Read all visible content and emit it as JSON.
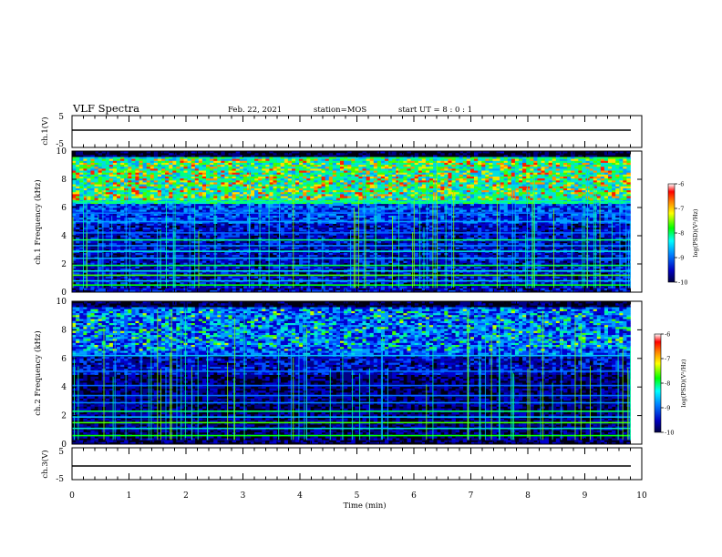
{
  "header": {
    "title": "VLF Spectra",
    "date": "Feb. 22, 2021",
    "station": "station=MOS",
    "start": "start UT =  8 : 0  : 1"
  },
  "colors": {
    "bar_high": "#ff0000",
    "bar_mid": "#00ff00",
    "bar_low": "#0000aa",
    "background": "#000000"
  },
  "chart_data": [
    {
      "type": "line",
      "panel": "ch1-waveform",
      "ylabel": "ch.1(V)",
      "ylim": [
        -5,
        5
      ],
      "yticks": [
        "5",
        "-5"
      ],
      "xlim": [
        0,
        10
      ],
      "series": [
        {
          "x": [
            0,
            9.8
          ],
          "values": [
            0,
            0
          ]
        }
      ]
    },
    {
      "type": "heatmap",
      "panel": "ch1-spectrogram",
      "ylabel": "ch.1 Frequency (kHz)",
      "xlim": [
        0,
        10
      ],
      "ylim": [
        0,
        10
      ],
      "yticks": [
        "0",
        "2",
        "4",
        "6",
        "8",
        "10"
      ],
      "data_extent_x": [
        0,
        9.8
      ],
      "colorbar": {
        "label": "log(PSD)(V²/Hz)",
        "range": [
          -10,
          -6
        ],
        "ticks": [
          "-6",
          "-7",
          "-8",
          "-9",
          "-10"
        ]
      }
    },
    {
      "type": "heatmap",
      "panel": "ch2-spectrogram",
      "ylabel": "ch.2 Frequency (kHz)",
      "xlim": [
        0,
        10
      ],
      "ylim": [
        0,
        10
      ],
      "yticks": [
        "0",
        "2",
        "4",
        "6",
        "8",
        "10"
      ],
      "data_extent_x": [
        0,
        9.8
      ],
      "colorbar": {
        "label": "log(PSD)(V²/Hz)",
        "range": [
          -10,
          -6
        ],
        "ticks": [
          "-6",
          "-7",
          "-8",
          "-9",
          "-10"
        ]
      }
    },
    {
      "type": "line",
      "panel": "ch3-waveform",
      "ylabel": "ch.3(V)",
      "ylim": [
        -5,
        5
      ],
      "yticks": [
        "5",
        "-5"
      ],
      "xlim": [
        0,
        10
      ],
      "xlabel": "Time (min)",
      "xticks": [
        "0",
        "1",
        "2",
        "3",
        "4",
        "5",
        "6",
        "7",
        "8",
        "9",
        "10"
      ],
      "series": [
        {
          "x": [
            0,
            9.8
          ],
          "values": [
            0,
            0
          ]
        }
      ]
    }
  ]
}
